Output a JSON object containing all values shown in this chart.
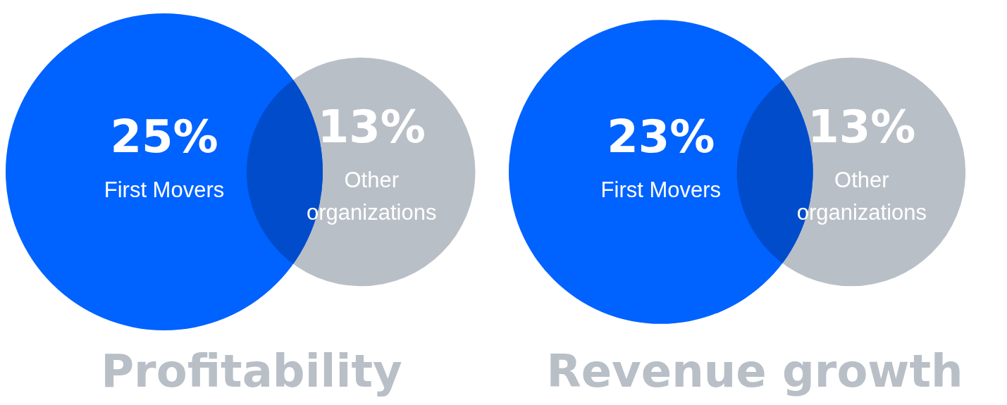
{
  "chart_data": [
    {
      "type": "other",
      "title": "Profitability",
      "categories": [
        "First Movers",
        "Other organizations"
      ],
      "values": [
        25,
        13
      ],
      "value_labels": [
        "25%",
        "13%"
      ],
      "colors": [
        "#0062ff",
        "#b9bfc7"
      ]
    },
    {
      "type": "other",
      "title": "Revenue growth",
      "categories": [
        "First Movers",
        "Other organizations"
      ],
      "values": [
        23,
        13
      ],
      "value_labels": [
        "23%",
        "13%"
      ],
      "colors": [
        "#0062ff",
        "#b9bfc7"
      ]
    }
  ]
}
